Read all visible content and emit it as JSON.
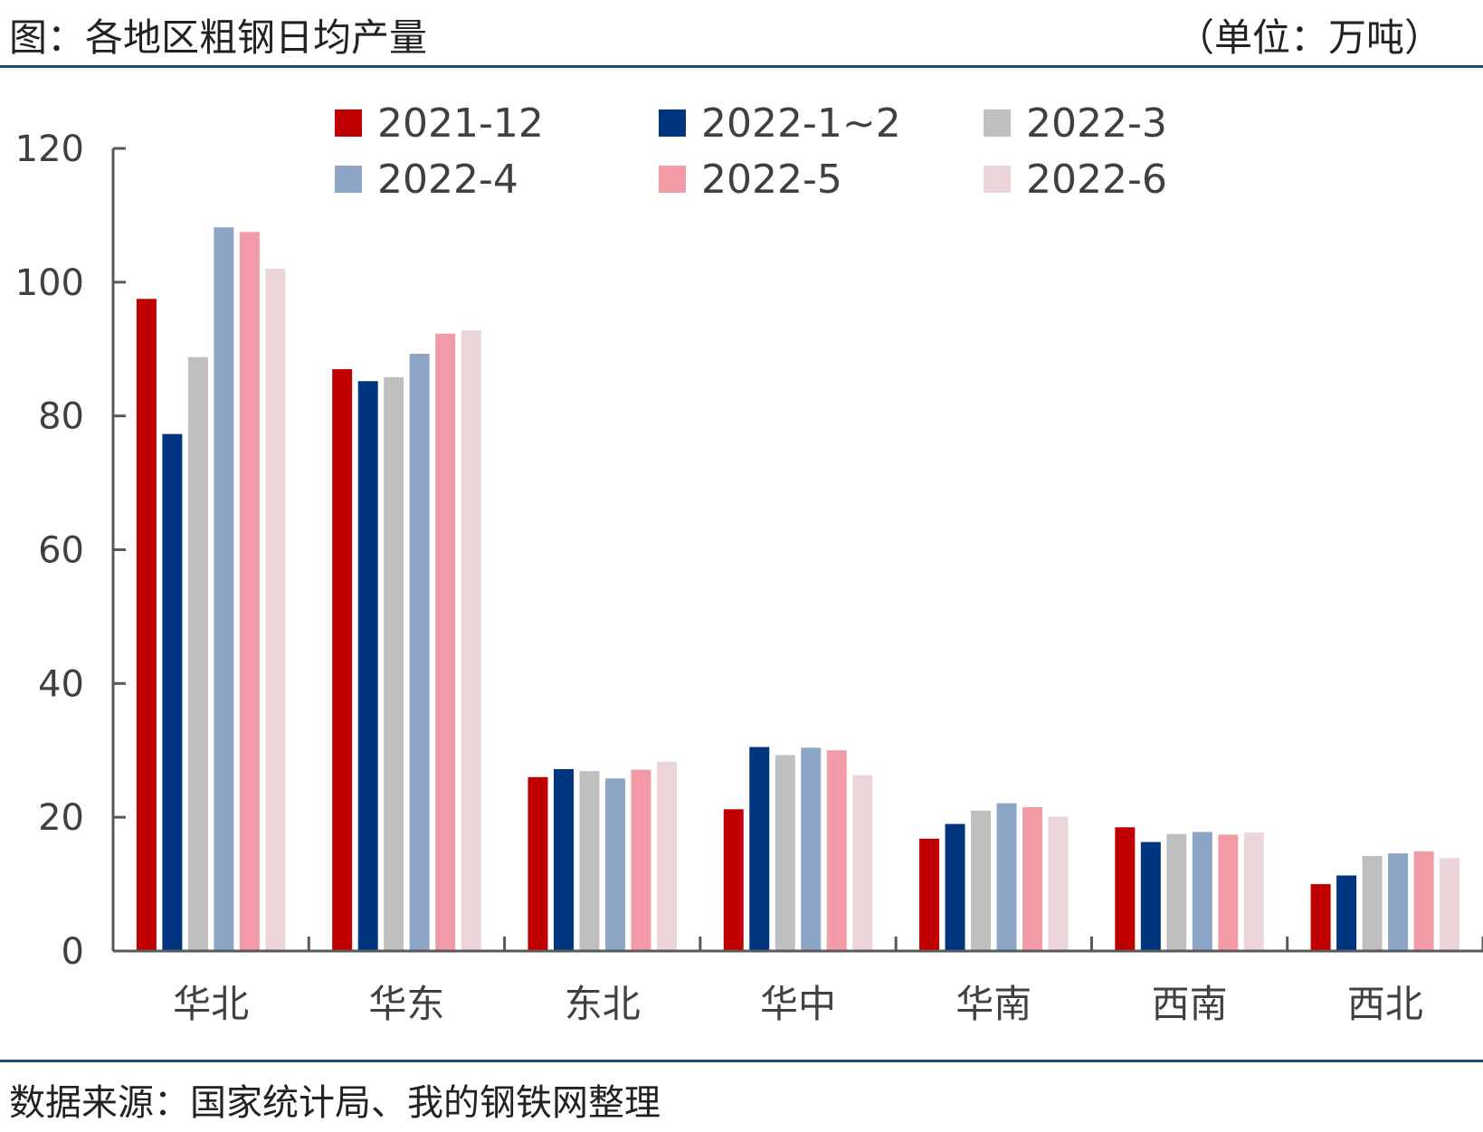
{
  "header": {
    "title": "图：各地区粗钢日均产量",
    "unit": "（单位：万吨）"
  },
  "footer": {
    "source": "数据来源：国家统计局、我的钢铁网整理"
  },
  "chart_data": {
    "type": "bar",
    "title": "图：各地区粗钢日均产量",
    "ylabel": "",
    "xlabel": "",
    "ylim": [
      0,
      120
    ],
    "yticks": [
      0,
      20,
      40,
      60,
      80,
      100,
      120
    ],
    "grid": false,
    "legend_position": "top",
    "categories": [
      "华北",
      "华东",
      "东北",
      "华中",
      "华南",
      "西南",
      "西北"
    ],
    "series": [
      {
        "name": "2021-12",
        "color": "#c00000",
        "values": [
          97.5,
          87.0,
          26.0,
          21.2,
          16.8,
          18.5,
          10.0
        ]
      },
      {
        "name": "2022-1~2",
        "color": "#003580",
        "values": [
          77.3,
          85.2,
          27.2,
          30.5,
          19.0,
          16.3,
          11.3
        ]
      },
      {
        "name": "2022-3",
        "color": "#bfbfbf",
        "values": [
          88.8,
          85.8,
          26.9,
          29.3,
          21.0,
          17.5,
          14.2
        ]
      },
      {
        "name": "2022-4",
        "color": "#8da6c8",
        "values": [
          108.2,
          89.3,
          25.8,
          30.4,
          22.1,
          17.8,
          14.6
        ]
      },
      {
        "name": "2022-5",
        "color": "#f29aa6",
        "values": [
          107.5,
          92.3,
          27.1,
          30.0,
          21.5,
          17.4,
          14.9
        ]
      },
      {
        "name": "2022-6",
        "color": "#ebd5d8",
        "values": [
          102.0,
          92.8,
          28.3,
          26.3,
          20.1,
          17.7,
          13.9
        ]
      }
    ]
  }
}
